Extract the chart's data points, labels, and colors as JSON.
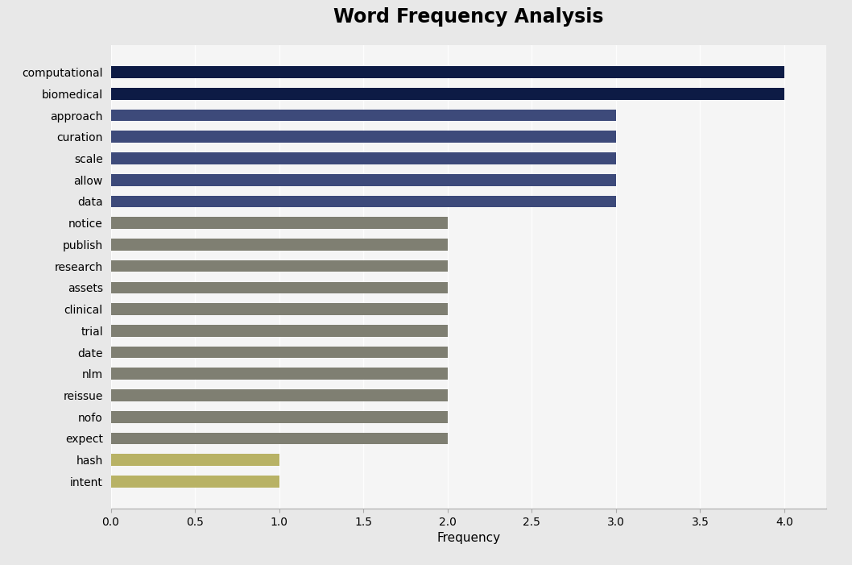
{
  "title": "Word Frequency Analysis",
  "xlabel": "Frequency",
  "categories": [
    "intent",
    "hash",
    "expect",
    "nofo",
    "reissue",
    "nlm",
    "date",
    "trial",
    "clinical",
    "assets",
    "research",
    "publish",
    "notice",
    "data",
    "allow",
    "scale",
    "curation",
    "approach",
    "biomedical",
    "computational"
  ],
  "values": [
    1,
    1,
    2,
    2,
    2,
    2,
    2,
    2,
    2,
    2,
    2,
    2,
    2,
    3,
    3,
    3,
    3,
    3,
    4,
    4
  ],
  "bar_colors": [
    "#b8b265",
    "#b8b265",
    "#7f7f72",
    "#7f7f72",
    "#7f7f72",
    "#7f7f72",
    "#7f7f72",
    "#7f7f72",
    "#7f7f72",
    "#7f7f72",
    "#7f7f72",
    "#7f7f72",
    "#7f7f72",
    "#3d4a7a",
    "#3d4a7a",
    "#3d4a7a",
    "#3d4a7a",
    "#3d4a7a",
    "#0d1b45",
    "#0d1b45"
  ],
  "xlim": [
    0,
    4.25
  ],
  "xticks": [
    0.0,
    0.5,
    1.0,
    1.5,
    2.0,
    2.5,
    3.0,
    3.5,
    4.0
  ],
  "background_color": "#e8e8e8",
  "plot_background_color": "#f5f5f5",
  "title_fontsize": 17,
  "label_fontsize": 11,
  "tick_fontsize": 10,
  "bar_height": 0.55
}
